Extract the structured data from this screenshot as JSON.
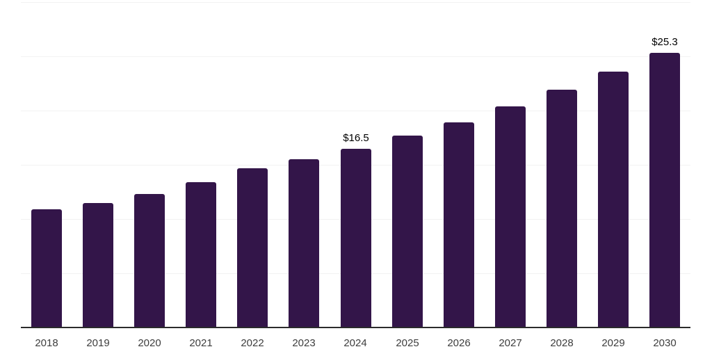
{
  "chart_data": {
    "type": "bar",
    "title": "",
    "xlabel": "",
    "ylabel": "",
    "categories": [
      "2018",
      "2019",
      "2020",
      "2021",
      "2022",
      "2023",
      "2024",
      "2025",
      "2026",
      "2027",
      "2028",
      "2029",
      "2030"
    ],
    "values": [
      10.9,
      11.5,
      12.3,
      13.4,
      14.7,
      15.5,
      16.5,
      17.7,
      18.9,
      20.4,
      21.9,
      23.6,
      25.3
    ],
    "point_labels": {
      "2024": "$16.5",
      "2030": "$25.3"
    },
    "ylim": [
      0,
      30
    ],
    "grid_step": 5,
    "grid": true,
    "legend": false,
    "colors": {
      "bar": "#331549",
      "grid": "#f2f2f2",
      "axis": "#2b2b2b",
      "tick_label": "#3d3d3d",
      "data_label": "#000000",
      "background": "#ffffff"
    }
  }
}
